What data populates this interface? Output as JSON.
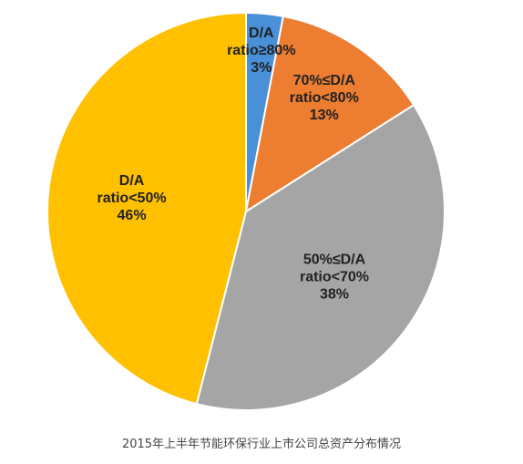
{
  "caption": "2015年上半年节能环保行业上市公司总资产分布情况",
  "chart_data": {
    "type": "pie",
    "title": "",
    "start_angle_deg": 0,
    "direction": "clockwise",
    "slices": [
      {
        "label_lines": [
          "D/A",
          "ratio≥80%",
          "3%"
        ],
        "value": 3,
        "color": "#4a90d9"
      },
      {
        "label_lines": [
          "70%≤D/A",
          "ratio<80%",
          "13%"
        ],
        "value": 13,
        "color": "#ed7d31"
      },
      {
        "label_lines": [
          "50%≤D/A",
          "ratio<70%",
          "38%"
        ],
        "value": 38,
        "color": "#a5a5a5"
      },
      {
        "label_lines": [
          "D/A",
          "ratio<50%",
          "46%"
        ],
        "value": 46,
        "color": "#ffc000"
      }
    ]
  }
}
